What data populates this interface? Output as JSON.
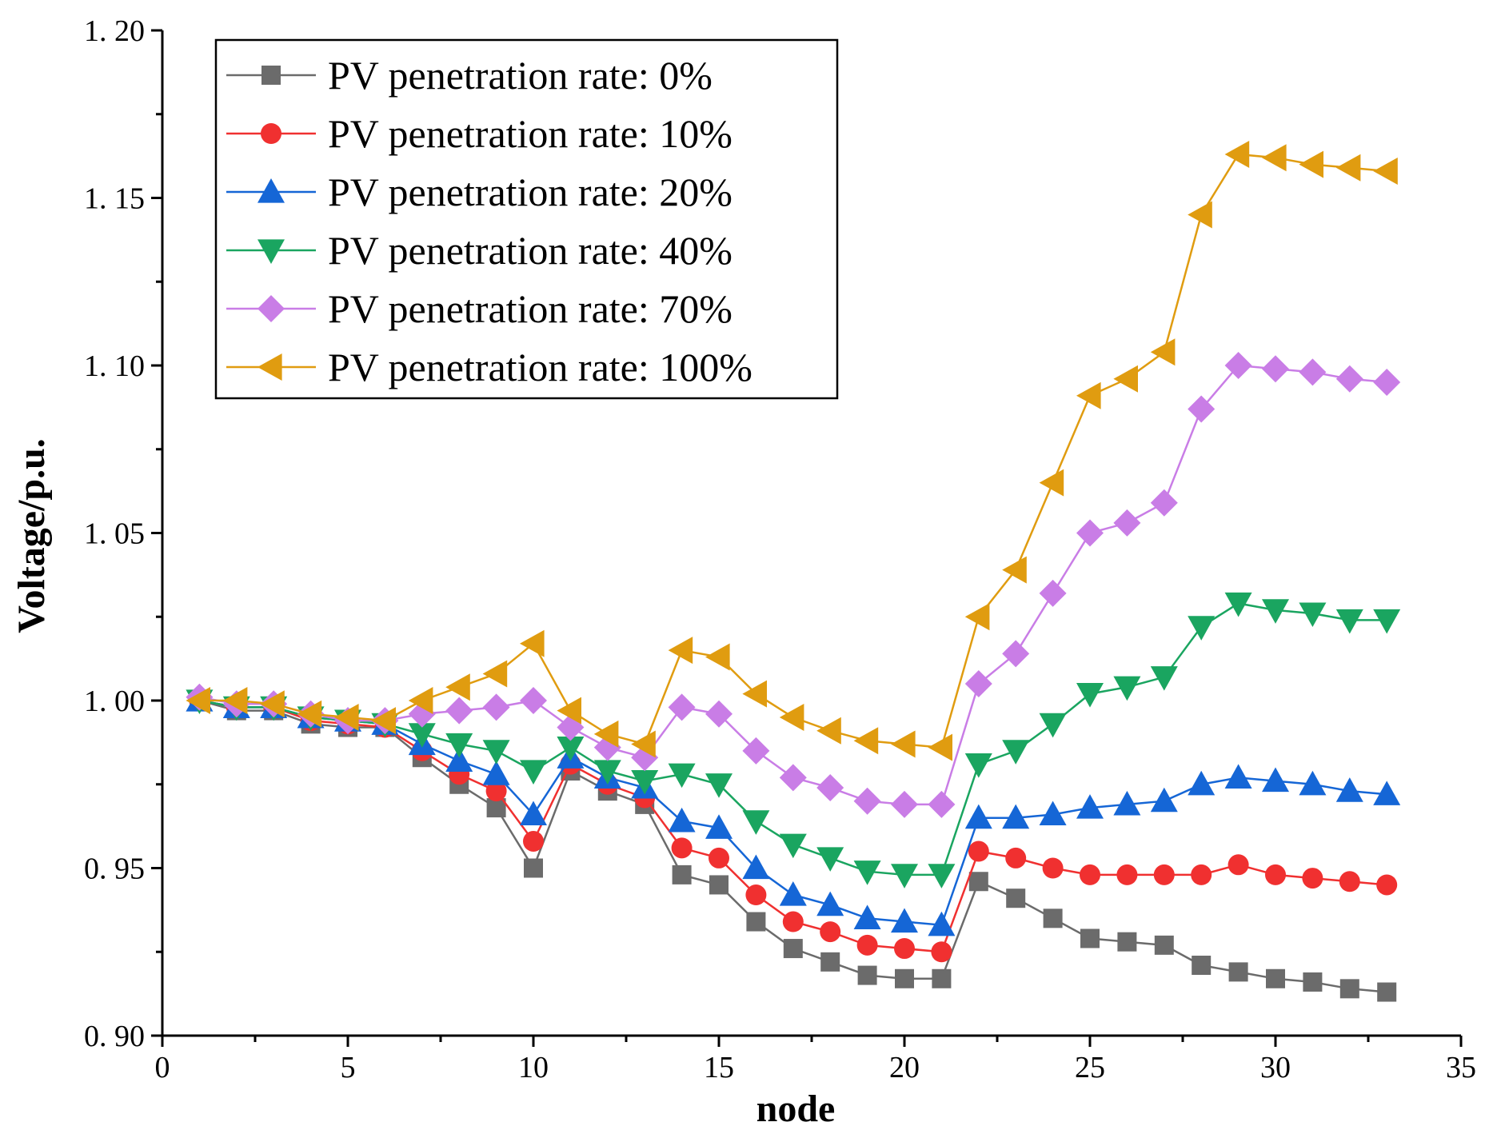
{
  "chart_data": {
    "type": "line",
    "title": "",
    "xlabel": "node",
    "ylabel": "Voltage/p.u.",
    "xlim": [
      0,
      35
    ],
    "ylim": [
      0.9,
      1.2
    ],
    "x_ticks": [
      0,
      5,
      10,
      15,
      20,
      25,
      30,
      35
    ],
    "y_ticks": [
      0.9,
      0.95,
      1.0,
      1.05,
      1.1,
      1.15,
      1.2
    ],
    "x_tick_labels": [
      "0",
      "5",
      "10",
      "15",
      "20",
      "25",
      "30",
      "35"
    ],
    "y_tick_labels": [
      "0. 90",
      "0. 95",
      "1. 00",
      "1. 05",
      "1. 10",
      "1. 15",
      "1. 20"
    ],
    "grid": false,
    "legend_position": "top-left",
    "x": [
      1,
      2,
      3,
      4,
      5,
      6,
      7,
      8,
      9,
      10,
      11,
      12,
      13,
      14,
      15,
      16,
      17,
      18,
      19,
      20,
      21,
      22,
      23,
      24,
      25,
      26,
      27,
      28,
      29,
      30,
      31,
      32,
      33
    ],
    "series": [
      {
        "name": "PV penetration rate: 0%",
        "color": "#6b6b6b",
        "marker": "square",
        "values": [
          1.0,
          0.997,
          0.997,
          0.993,
          0.992,
          0.992,
          0.983,
          0.975,
          0.968,
          0.95,
          0.979,
          0.973,
          0.969,
          0.948,
          0.945,
          0.934,
          0.926,
          0.922,
          0.918,
          0.917,
          0.917,
          0.946,
          0.941,
          0.935,
          0.929,
          0.928,
          0.927,
          0.921,
          0.919,
          0.917,
          0.916,
          0.914,
          0.913
        ]
      },
      {
        "name": "PV penetration rate: 10%",
        "color": "#f03030",
        "marker": "circle",
        "values": [
          1.0,
          0.998,
          0.998,
          0.994,
          0.993,
          0.992,
          0.985,
          0.978,
          0.973,
          0.958,
          0.981,
          0.975,
          0.971,
          0.956,
          0.953,
          0.942,
          0.934,
          0.931,
          0.927,
          0.926,
          0.925,
          0.955,
          0.953,
          0.95,
          0.948,
          0.948,
          0.948,
          0.948,
          0.951,
          0.948,
          0.947,
          0.946,
          0.945
        ]
      },
      {
        "name": "PV penetration rate: 20%",
        "color": "#1566d6",
        "marker": "triangle-up",
        "values": [
          1.0,
          0.998,
          0.998,
          0.995,
          0.994,
          0.993,
          0.987,
          0.982,
          0.978,
          0.966,
          0.983,
          0.977,
          0.974,
          0.964,
          0.962,
          0.95,
          0.942,
          0.939,
          0.935,
          0.934,
          0.933,
          0.965,
          0.965,
          0.966,
          0.968,
          0.969,
          0.97,
          0.975,
          0.977,
          0.976,
          0.975,
          0.973,
          0.972
        ]
      },
      {
        "name": "PV penetration rate: 40%",
        "color": "#1aa560",
        "marker": "triangle-down",
        "values": [
          1.0,
          0.998,
          0.998,
          0.995,
          0.994,
          0.993,
          0.99,
          0.987,
          0.985,
          0.979,
          0.986,
          0.979,
          0.976,
          0.978,
          0.975,
          0.964,
          0.957,
          0.953,
          0.949,
          0.948,
          0.948,
          0.981,
          0.985,
          0.993,
          1.002,
          1.004,
          1.007,
          1.022,
          1.029,
          1.027,
          1.026,
          1.024,
          1.024
        ]
      },
      {
        "name": "PV penetration rate: 70%",
        "color": "#c97de6",
        "marker": "diamond",
        "values": [
          1.001,
          0.999,
          0.999,
          0.996,
          0.994,
          0.994,
          0.996,
          0.997,
          0.998,
          1.0,
          0.992,
          0.986,
          0.983,
          0.998,
          0.996,
          0.985,
          0.977,
          0.974,
          0.97,
          0.969,
          0.969,
          1.005,
          1.014,
          1.032,
          1.05,
          1.053,
          1.059,
          1.087,
          1.1,
          1.099,
          1.098,
          1.096,
          1.095
        ]
      },
      {
        "name": "PV penetration rate: 100%",
        "color": "#e09c10",
        "marker": "triangle-left",
        "values": [
          1.0,
          1.0,
          0.999,
          0.996,
          0.995,
          0.994,
          1.0,
          1.004,
          1.008,
          1.017,
          0.997,
          0.99,
          0.987,
          1.015,
          1.013,
          1.002,
          0.995,
          0.991,
          0.988,
          0.987,
          0.986,
          1.025,
          1.039,
          1.065,
          1.091,
          1.096,
          1.104,
          1.145,
          1.163,
          1.162,
          1.16,
          1.159,
          1.158
        ]
      }
    ]
  }
}
